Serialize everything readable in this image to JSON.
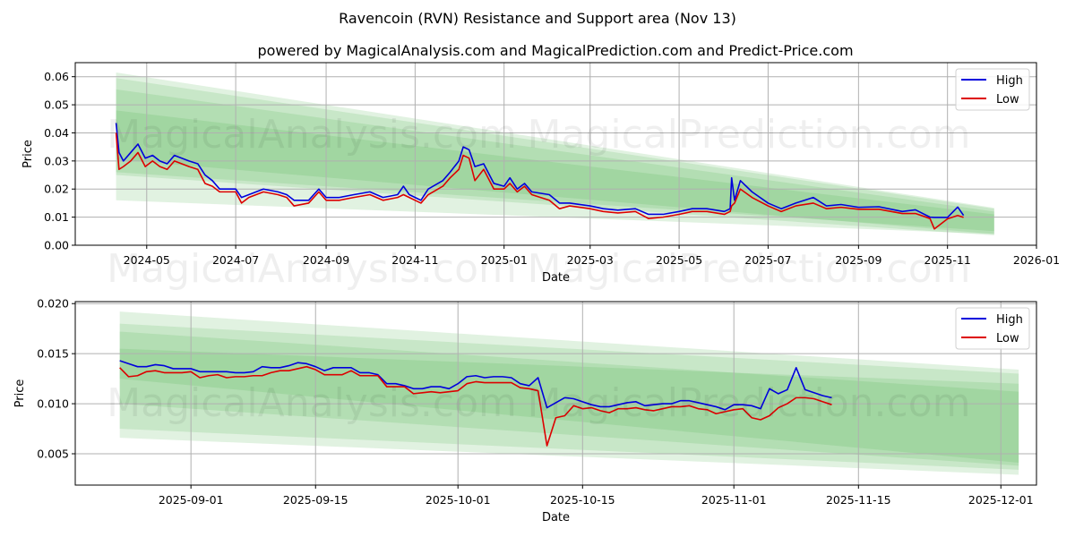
{
  "title": "Ravencoin (RVN) Resistance and Support area (Nov 13)",
  "subtitle": "powered by MagicalAnalysis.com and MagicalPrediction.com and Predict-Price.com",
  "watermarks": [
    "MagicalAnalysis.com",
    "MagicalPrediction.com"
  ],
  "colors": {
    "high": "#0000dd",
    "low": "#dd0000",
    "band": "#4caf50",
    "grid": "#b0b0b0"
  },
  "chart_data": [
    {
      "type": "line",
      "xlabel": "Date",
      "ylabel": "Price",
      "xlim": [
        "2024-03-13",
        "2026-01-01"
      ],
      "ylim": [
        0,
        0.065
      ],
      "grid": true,
      "legend": "top-right",
      "legend_labels": [
        "High",
        "Low"
      ],
      "xticks": [
        "2024-05",
        "2024-07",
        "2024-09",
        "2024-11",
        "2025-01",
        "2025-03",
        "2025-05",
        "2025-07",
        "2025-09",
        "2025-11",
        "2026-01"
      ],
      "yticks": [
        "0.00",
        "0.01",
        "0.02",
        "0.03",
        "0.04",
        "0.05",
        "0.06"
      ],
      "ytick_values": [
        0,
        0.01,
        0.02,
        0.03,
        0.04,
        0.05,
        0.06
      ],
      "bands": {
        "start": "2024-04-10",
        "end": "2025-12-03",
        "layers": [
          [
            0.0615,
            0.016,
            0.0133,
            0.004
          ],
          [
            0.0595,
            0.025,
            0.013,
            0.0035
          ],
          [
            0.0555,
            0.0305,
            0.012,
            0.004
          ],
          [
            0.048,
            0.026,
            0.011,
            0.005
          ]
        ]
      },
      "dates": [
        "2024-04-10",
        "2024-04-12",
        "2024-04-15",
        "2024-04-20",
        "2024-04-25",
        "2024-04-30",
        "2024-05-05",
        "2024-05-10",
        "2024-05-15",
        "2024-05-20",
        "2024-05-25",
        "2024-05-30",
        "2024-06-05",
        "2024-06-10",
        "2024-06-15",
        "2024-06-20",
        "2024-06-25",
        "2024-07-01",
        "2024-07-05",
        "2024-07-10",
        "2024-07-20",
        "2024-07-30",
        "2024-08-05",
        "2024-08-10",
        "2024-08-20",
        "2024-08-27",
        "2024-09-01",
        "2024-09-10",
        "2024-09-20",
        "2024-10-01",
        "2024-10-10",
        "2024-10-20",
        "2024-10-24",
        "2024-10-28",
        "2024-11-01",
        "2024-11-05",
        "2024-11-10",
        "2024-11-20",
        "2024-11-25",
        "2024-12-01",
        "2024-12-04",
        "2024-12-08",
        "2024-12-12",
        "2024-12-18",
        "2024-12-25",
        "2025-01-01",
        "2025-01-05",
        "2025-01-10",
        "2025-01-15",
        "2025-01-20",
        "2025-02-01",
        "2025-02-08",
        "2025-02-15",
        "2025-03-01",
        "2025-03-10",
        "2025-03-20",
        "2025-04-01",
        "2025-04-10",
        "2025-04-20",
        "2025-05-01",
        "2025-05-10",
        "2025-05-20",
        "2025-06-01",
        "2025-06-05",
        "2025-06-06",
        "2025-06-08",
        "2025-06-12",
        "2025-06-20",
        "2025-07-01",
        "2025-07-10",
        "2025-07-20",
        "2025-08-01",
        "2025-08-10",
        "2025-08-20",
        "2025-09-01",
        "2025-09-15",
        "2025-10-01",
        "2025-10-10",
        "2025-10-20",
        "2025-10-23",
        "2025-11-01",
        "2025-11-08",
        "2025-11-12"
      ],
      "series": [
        {
          "name": "High",
          "values": [
            0.0435,
            0.033,
            0.03,
            0.033,
            0.036,
            0.031,
            0.032,
            0.03,
            0.029,
            0.032,
            0.031,
            0.03,
            0.029,
            0.025,
            0.023,
            0.02,
            0.02,
            0.02,
            0.017,
            0.018,
            0.02,
            0.019,
            0.018,
            0.016,
            0.016,
            0.02,
            0.017,
            0.017,
            0.018,
            0.019,
            0.017,
            0.018,
            0.021,
            0.018,
            0.017,
            0.016,
            0.02,
            0.023,
            0.026,
            0.03,
            0.035,
            0.034,
            0.028,
            0.029,
            0.022,
            0.021,
            0.024,
            0.02,
            0.022,
            0.019,
            0.018,
            0.015,
            0.015,
            0.014,
            0.013,
            0.0125,
            0.013,
            0.011,
            0.011,
            0.012,
            0.013,
            0.013,
            0.012,
            0.013,
            0.024,
            0.016,
            0.023,
            0.019,
            0.015,
            0.013,
            0.015,
            0.017,
            0.014,
            0.0145,
            0.0135,
            0.0137,
            0.012,
            0.0126,
            0.01,
            0.0099,
            0.0099,
            0.0136,
            0.0106
          ]
        },
        {
          "name": "Low",
          "values": [
            0.04,
            0.027,
            0.028,
            0.03,
            0.033,
            0.028,
            0.03,
            0.028,
            0.027,
            0.03,
            0.029,
            0.028,
            0.027,
            0.022,
            0.021,
            0.019,
            0.019,
            0.019,
            0.015,
            0.017,
            0.019,
            0.018,
            0.017,
            0.014,
            0.015,
            0.019,
            0.016,
            0.016,
            0.017,
            0.018,
            0.016,
            0.017,
            0.018,
            0.017,
            0.016,
            0.015,
            0.018,
            0.021,
            0.024,
            0.027,
            0.032,
            0.031,
            0.023,
            0.027,
            0.02,
            0.02,
            0.022,
            0.019,
            0.021,
            0.018,
            0.016,
            0.013,
            0.014,
            0.013,
            0.012,
            0.0115,
            0.012,
            0.0095,
            0.01,
            0.011,
            0.012,
            0.012,
            0.011,
            0.012,
            0.014,
            0.015,
            0.02,
            0.017,
            0.014,
            0.012,
            0.014,
            0.015,
            0.013,
            0.0135,
            0.0128,
            0.0128,
            0.0113,
            0.0113,
            0.0095,
            0.0058,
            0.0094,
            0.0106,
            0.0099
          ]
        }
      ]
    },
    {
      "type": "line",
      "xlabel": "Date",
      "ylabel": "Price",
      "xlim": [
        "2025-08-19",
        "2025-12-05"
      ],
      "ylim": [
        0.00187,
        0.0202
      ],
      "grid": true,
      "legend": "top-right",
      "legend_labels": [
        "High",
        "Low"
      ],
      "xticks": [
        "2025-09-01",
        "2025-09-15",
        "2025-10-01",
        "2025-10-15",
        "2025-11-01",
        "2025-11-15",
        "2025-12-01"
      ],
      "yticks": [
        "0.005",
        "0.010",
        "0.015",
        "0.020"
      ],
      "ytick_values": [
        0.005,
        0.01,
        0.015,
        0.02
      ],
      "bands": {
        "start": "2025-08-24",
        "end": "2025-12-03",
        "layers": [
          [
            0.0192,
            0.0066,
            0.0134,
            0.0029
          ],
          [
            0.018,
            0.0075,
            0.013,
            0.0034
          ],
          [
            0.0172,
            0.0125,
            0.0112,
            0.0041
          ],
          [
            0.0155,
            0.01,
            0.012,
            0.0038
          ]
        ]
      },
      "start_date": "2025-08-24",
      "series": [
        {
          "name": "High",
          "values": [
            0.0143,
            0.014,
            0.0137,
            0.0137,
            0.0139,
            0.0138,
            0.0135,
            0.0135,
            0.0135,
            0.0132,
            0.0132,
            0.0132,
            0.0132,
            0.0131,
            0.0131,
            0.0132,
            0.0137,
            0.0136,
            0.0136,
            0.0138,
            0.0141,
            0.014,
            0.0137,
            0.0133,
            0.0136,
            0.0136,
            0.0136,
            0.0131,
            0.0131,
            0.0129,
            0.012,
            0.012,
            0.0118,
            0.0115,
            0.0115,
            0.0117,
            0.0117,
            0.0115,
            0.012,
            0.0127,
            0.0128,
            0.0126,
            0.0127,
            0.0127,
            0.0126,
            0.012,
            0.0118,
            0.0126,
            0.0096,
            0.0101,
            0.0106,
            0.0105,
            0.0102,
            0.0099,
            0.0097,
            0.0097,
            0.0099,
            0.0101,
            0.0102,
            0.0098,
            0.0099,
            0.01,
            0.01,
            0.0103,
            0.0103,
            0.0101,
            0.0099,
            0.0097,
            0.0094,
            0.0099,
            0.0099,
            0.0098,
            0.0095,
            0.0115,
            0.011,
            0.0114,
            0.0136,
            0.0114,
            0.0111,
            0.0108,
            0.0106
          ]
        },
        {
          "name": "Low",
          "values": [
            0.0136,
            0.0127,
            0.0128,
            0.0132,
            0.0133,
            0.0131,
            0.0131,
            0.0131,
            0.0132,
            0.0126,
            0.0128,
            0.0129,
            0.0126,
            0.0127,
            0.0127,
            0.0128,
            0.0128,
            0.0131,
            0.0133,
            0.0133,
            0.0135,
            0.0137,
            0.0134,
            0.0129,
            0.0129,
            0.0129,
            0.0133,
            0.0128,
            0.0128,
            0.0128,
            0.0117,
            0.0117,
            0.0117,
            0.011,
            0.0111,
            0.0112,
            0.0111,
            0.0112,
            0.0113,
            0.012,
            0.0122,
            0.0121,
            0.0121,
            0.0121,
            0.0121,
            0.0116,
            0.0115,
            0.0113,
            0.0058,
            0.0086,
            0.0088,
            0.0098,
            0.0095,
            0.0096,
            0.0093,
            0.0091,
            0.0095,
            0.0095,
            0.0096,
            0.0094,
            0.0093,
            0.0095,
            0.0097,
            0.0097,
            0.0098,
            0.0095,
            0.0094,
            0.009,
            0.0092,
            0.0094,
            0.0095,
            0.0086,
            0.0084,
            0.0088,
            0.0096,
            0.01,
            0.0106,
            0.0106,
            0.0105,
            0.0102,
            0.0099
          ]
        }
      ]
    }
  ]
}
